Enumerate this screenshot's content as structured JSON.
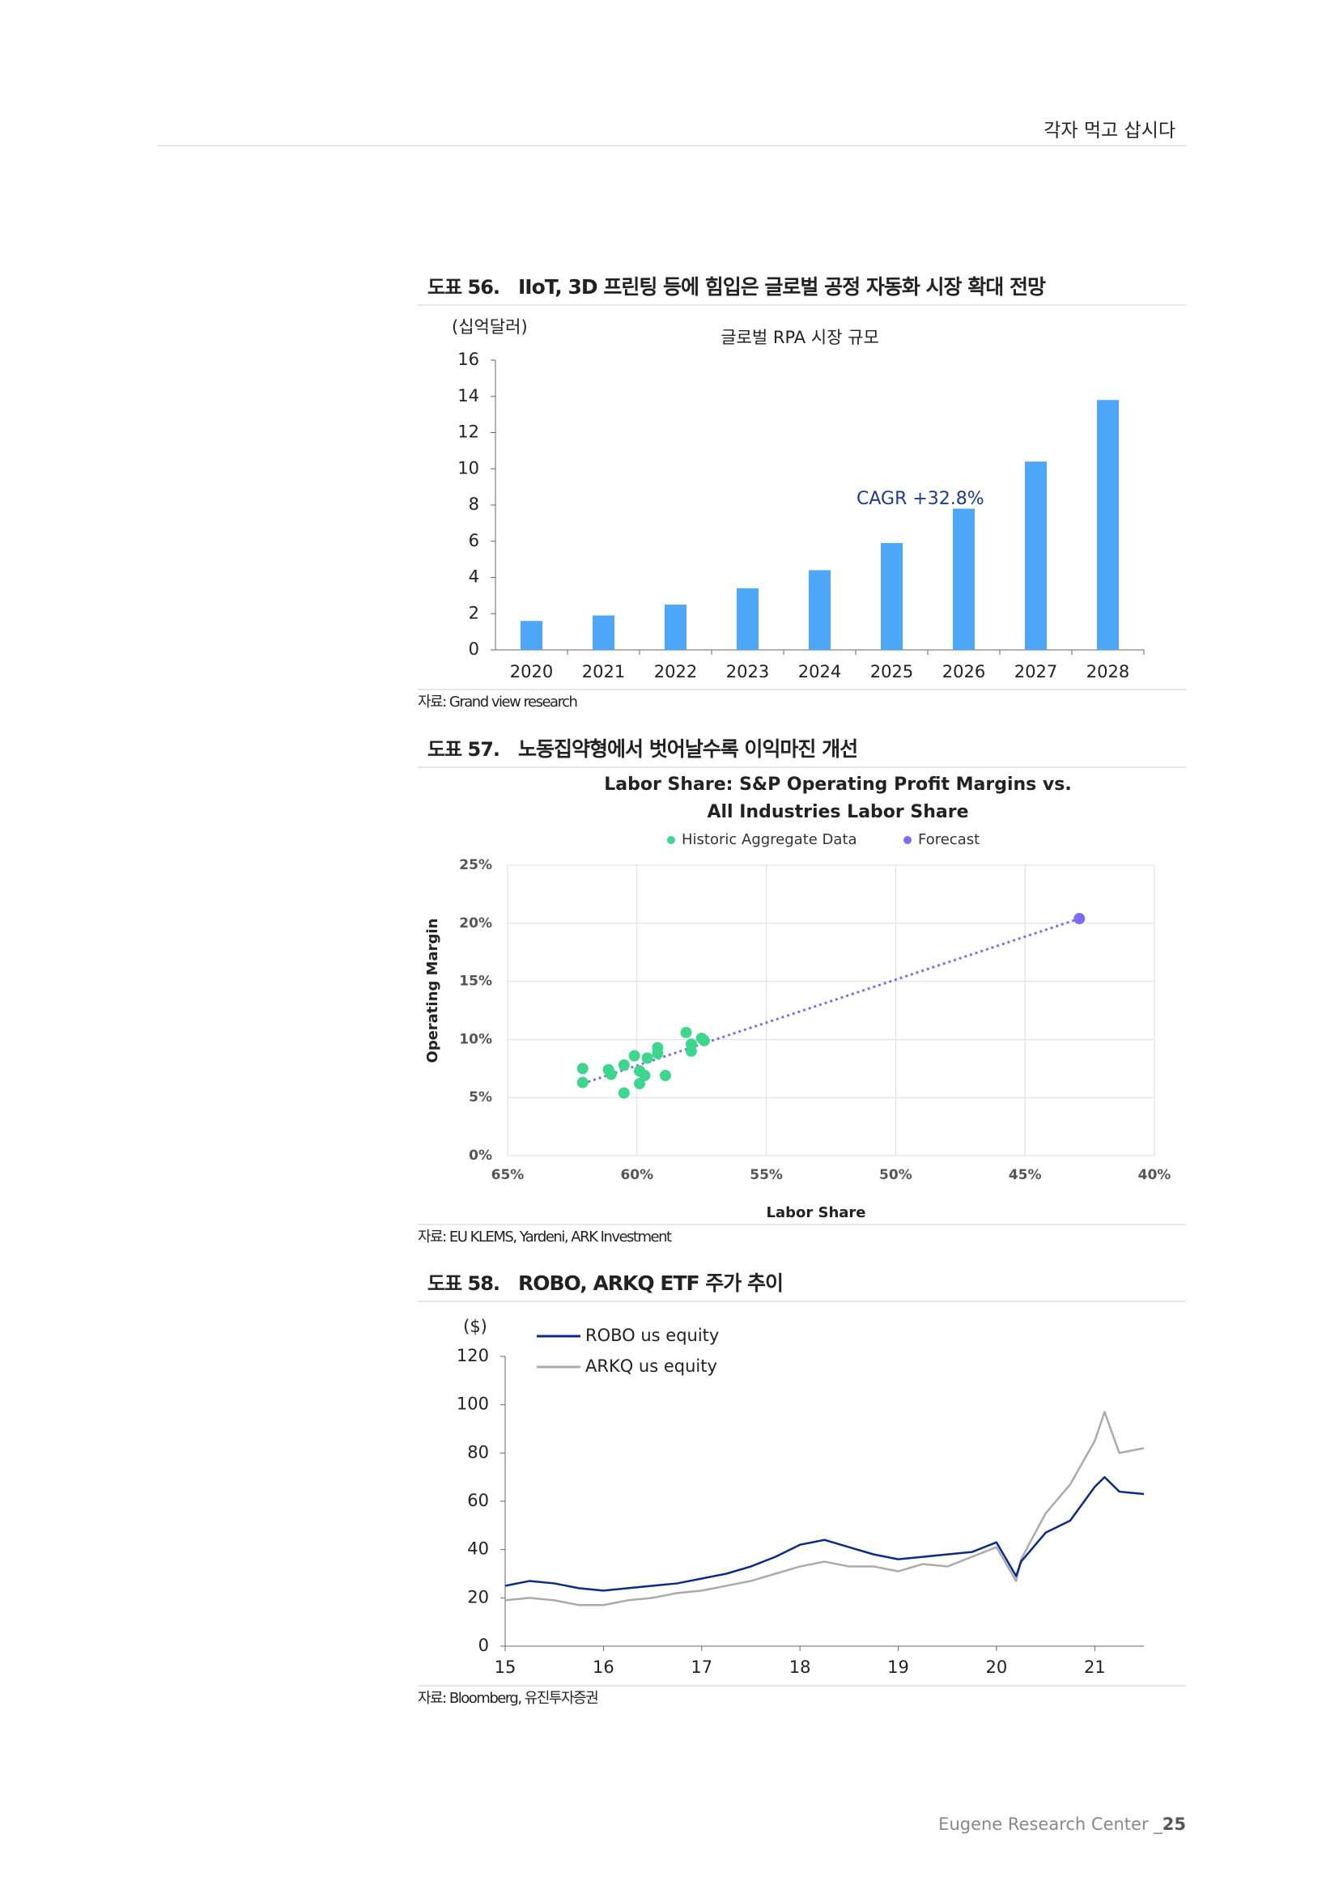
{
  "header": {
    "title": "각자 먹고 삽시다"
  },
  "chart_data": [
    {
      "type": "bar",
      "figure_number": "도표 56.",
      "caption": "IIoT, 3D 프린팅 등에 힘입은 글로벌 공정 자동화 시장 확대 전망",
      "title": "글로벌 RPA 시장 규모",
      "y_label": "(십억달러)",
      "annotation": "CAGR +32.8%",
      "categories": [
        "2020",
        "2021",
        "2022",
        "2023",
        "2024",
        "2025",
        "2026",
        "2027",
        "2028"
      ],
      "values": [
        1.6,
        1.9,
        2.5,
        3.4,
        4.4,
        5.9,
        7.8,
        10.4,
        13.8
      ],
      "color": "#4da6f7",
      "ylim": [
        0,
        16
      ],
      "yticks": [
        0,
        2,
        4,
        6,
        8,
        10,
        12,
        14,
        16
      ],
      "grid": false,
      "source": "자료: Grand view research"
    },
    {
      "type": "scatter",
      "figure_number": "도표 57.",
      "caption": "노동집약형에서 벗어날수록 이익마진 개선",
      "title": [
        "Labor Share: S&P Operating Profit Margins vs.",
        "All Industries Labor Share"
      ],
      "x_label": "Labor Share",
      "y_label": "Operating Margin",
      "series": [
        {
          "name": "Historic Aggregate Data",
          "color": "#3dd68c",
          "x": [
            62.1,
            62.1,
            61.1,
            61.0,
            60.5,
            60.5,
            60.1,
            59.9,
            59.9,
            59.7,
            59.6,
            59.2,
            59.2,
            58.9,
            58.1,
            57.9,
            57.9,
            57.5,
            57.4
          ],
          "y": [
            7.5,
            6.3,
            7.4,
            7.0,
            7.8,
            5.4,
            8.6,
            7.3,
            6.2,
            6.9,
            8.4,
            8.8,
            9.3,
            6.9,
            10.6,
            9.0,
            9.6,
            10.1,
            9.9
          ]
        },
        {
          "name": "Forecast",
          "color": "#7b6cf6",
          "x": [
            42.9
          ],
          "y": [
            20.4
          ]
        }
      ],
      "trend_line": {
        "color": "#7b6cf6",
        "x": [
          62.1,
          42.9
        ],
        "y": [
          6.2,
          20.4
        ]
      },
      "xlim": [
        65,
        40
      ],
      "xticks": [
        {
          "value": 65,
          "label": "65%"
        },
        {
          "value": 60,
          "label": "60%"
        },
        {
          "value": 55,
          "label": "55%"
        },
        {
          "value": 50,
          "label": "50%"
        },
        {
          "value": 45,
          "label": "45%"
        },
        {
          "value": 40,
          "label": "40%"
        }
      ],
      "ylim": [
        0,
        25
      ],
      "yticks": [
        {
          "value": 0,
          "label": "0%"
        },
        {
          "value": 5,
          "label": "5%"
        },
        {
          "value": 10,
          "label": "10%"
        },
        {
          "value": 15,
          "label": "15%"
        },
        {
          "value": 20,
          "label": "20%"
        },
        {
          "value": 25,
          "label": "25%"
        }
      ],
      "grid": true,
      "legend": "top",
      "source": "자료: EU KLEMS, Yardeni, ARK Investment"
    },
    {
      "type": "line",
      "figure_number": "도표 58.",
      "caption": "ROBO, ARKQ ETF 주가 추이",
      "y_label": "($)",
      "x": [
        15.0,
        15.25,
        15.5,
        15.75,
        16.0,
        16.25,
        16.5,
        16.75,
        17.0,
        17.25,
        17.5,
        17.75,
        18.0,
        18.25,
        18.5,
        18.75,
        19.0,
        19.25,
        19.5,
        19.75,
        20.0,
        20.2,
        20.25,
        20.5,
        20.75,
        21.0,
        21.1,
        21.25,
        21.5
      ],
      "series": [
        {
          "name": "ROBO us equity",
          "color": "#0a2a8a",
          "values": [
            25,
            27,
            26,
            24,
            23,
            24,
            25,
            26,
            28,
            30,
            33,
            37,
            42,
            44,
            41,
            38,
            36,
            37,
            38,
            39,
            43,
            29,
            35,
            47,
            52,
            66,
            70,
            64,
            63
          ]
        },
        {
          "name": "ARKQ us equity",
          "color": "#aaaaaa",
          "values": [
            19,
            20,
            19,
            17,
            17,
            19,
            20,
            22,
            23,
            25,
            27,
            30,
            33,
            35,
            33,
            33,
            31,
            34,
            33,
            37,
            41,
            27,
            36,
            55,
            67,
            85,
            97,
            80,
            82
          ]
        }
      ],
      "xlim": [
        15,
        21.5
      ],
      "xticks": [
        15,
        16,
        17,
        18,
        19,
        20,
        21
      ],
      "ylim": [
        0,
        120
      ],
      "yticks": [
        0,
        20,
        40,
        60,
        80,
        100,
        120
      ],
      "grid": false,
      "legend": "top-left",
      "source": "자료: Bloomberg, 유진투자증권"
    }
  ],
  "footer": {
    "text": "Eugene Research Center _",
    "page": "25"
  }
}
